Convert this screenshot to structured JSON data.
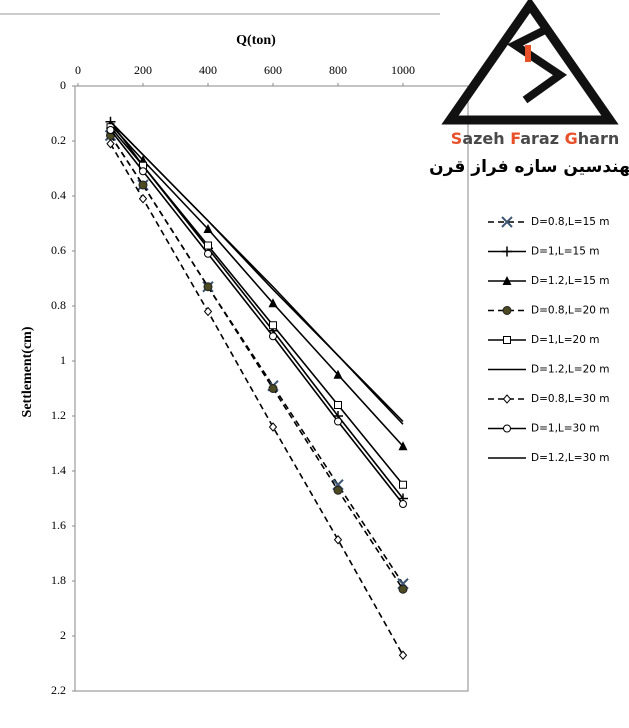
{
  "chart_data": {
    "type": "line",
    "title_x": "Q(ton)",
    "title_y": "Settlement(cm)",
    "x": [
      100,
      200,
      400,
      600,
      800,
      1000
    ],
    "xlim": [
      0,
      1200
    ],
    "xticks": [
      0,
      200,
      400,
      600,
      800,
      1000
    ],
    "ylim": [
      0,
      2.2
    ],
    "yticks": [
      0,
      0.2,
      0.4,
      0.6,
      0.8,
      1,
      1.2,
      1.4,
      1.6,
      1.8,
      2,
      2.2
    ],
    "y_inverted": true,
    "x_axis_top": true,
    "legend": "right",
    "series": [
      {
        "name": "D=0.8,L=15 m",
        "color": "#000000",
        "marker_color": "#3d5674",
        "marker": "x",
        "dash": true,
        "values": [
          0.18,
          0.36,
          0.73,
          1.09,
          1.45,
          1.81
        ]
      },
      {
        "name": "D=1,L=15 m",
        "color": "#000000",
        "marker_color": "#000000",
        "marker": "plus",
        "dash": false,
        "values": [
          0.13,
          0.29,
          0.59,
          0.89,
          1.2,
          1.5
        ]
      },
      {
        "name": "D=1.2,L=15 m",
        "color": "#000000",
        "marker_color": "#000000",
        "marker": "triangle",
        "dash": false,
        "values": [
          0.14,
          0.27,
          0.52,
          0.79,
          1.05,
          1.31
        ]
      },
      {
        "name": "D=0.8,L=20 m",
        "color": "#000000",
        "marker_color": "#4b4a22",
        "marker": "dot",
        "dash": true,
        "values": [
          0.18,
          0.36,
          0.73,
          1.1,
          1.47,
          1.83
        ]
      },
      {
        "name": "D=1,L=20 m",
        "color": "#000000",
        "marker_color": "#000000",
        "marker": "square",
        "dash": false,
        "values": [
          0.15,
          0.29,
          0.58,
          0.87,
          1.16,
          1.45
        ]
      },
      {
        "name": "D=1.2,L=20 m",
        "color": "#000000",
        "marker_color": "#000000",
        "marker": "none",
        "dash": false,
        "values": [
          0.13,
          0.25,
          0.49,
          0.73,
          0.98,
          1.22
        ]
      },
      {
        "name": "D=0.8,L=30 m",
        "color": "#000000",
        "marker_color": "#000000",
        "marker": "diamond",
        "dash": true,
        "values": [
          0.21,
          0.41,
          0.82,
          1.24,
          1.65,
          2.07
        ]
      },
      {
        "name": "D=1,L=30 m",
        "color": "#000000",
        "marker_color": "#000000",
        "marker": "circle",
        "dash": false,
        "values": [
          0.16,
          0.31,
          0.61,
          0.91,
          1.22,
          1.52
        ]
      },
      {
        "name": "D=1.2,L=30 m",
        "color": "#000000",
        "marker_color": "#000000",
        "marker": "none",
        "dash": false,
        "values": [
          0.13,
          0.25,
          0.49,
          0.74,
          0.98,
          1.23
        ]
      }
    ]
  },
  "logo": {
    "name_parts": [
      "S",
      "azeh ",
      "F",
      "araz ",
      "G",
      "harn"
    ],
    "persian": "مهندسین سازه فراز قرن"
  }
}
